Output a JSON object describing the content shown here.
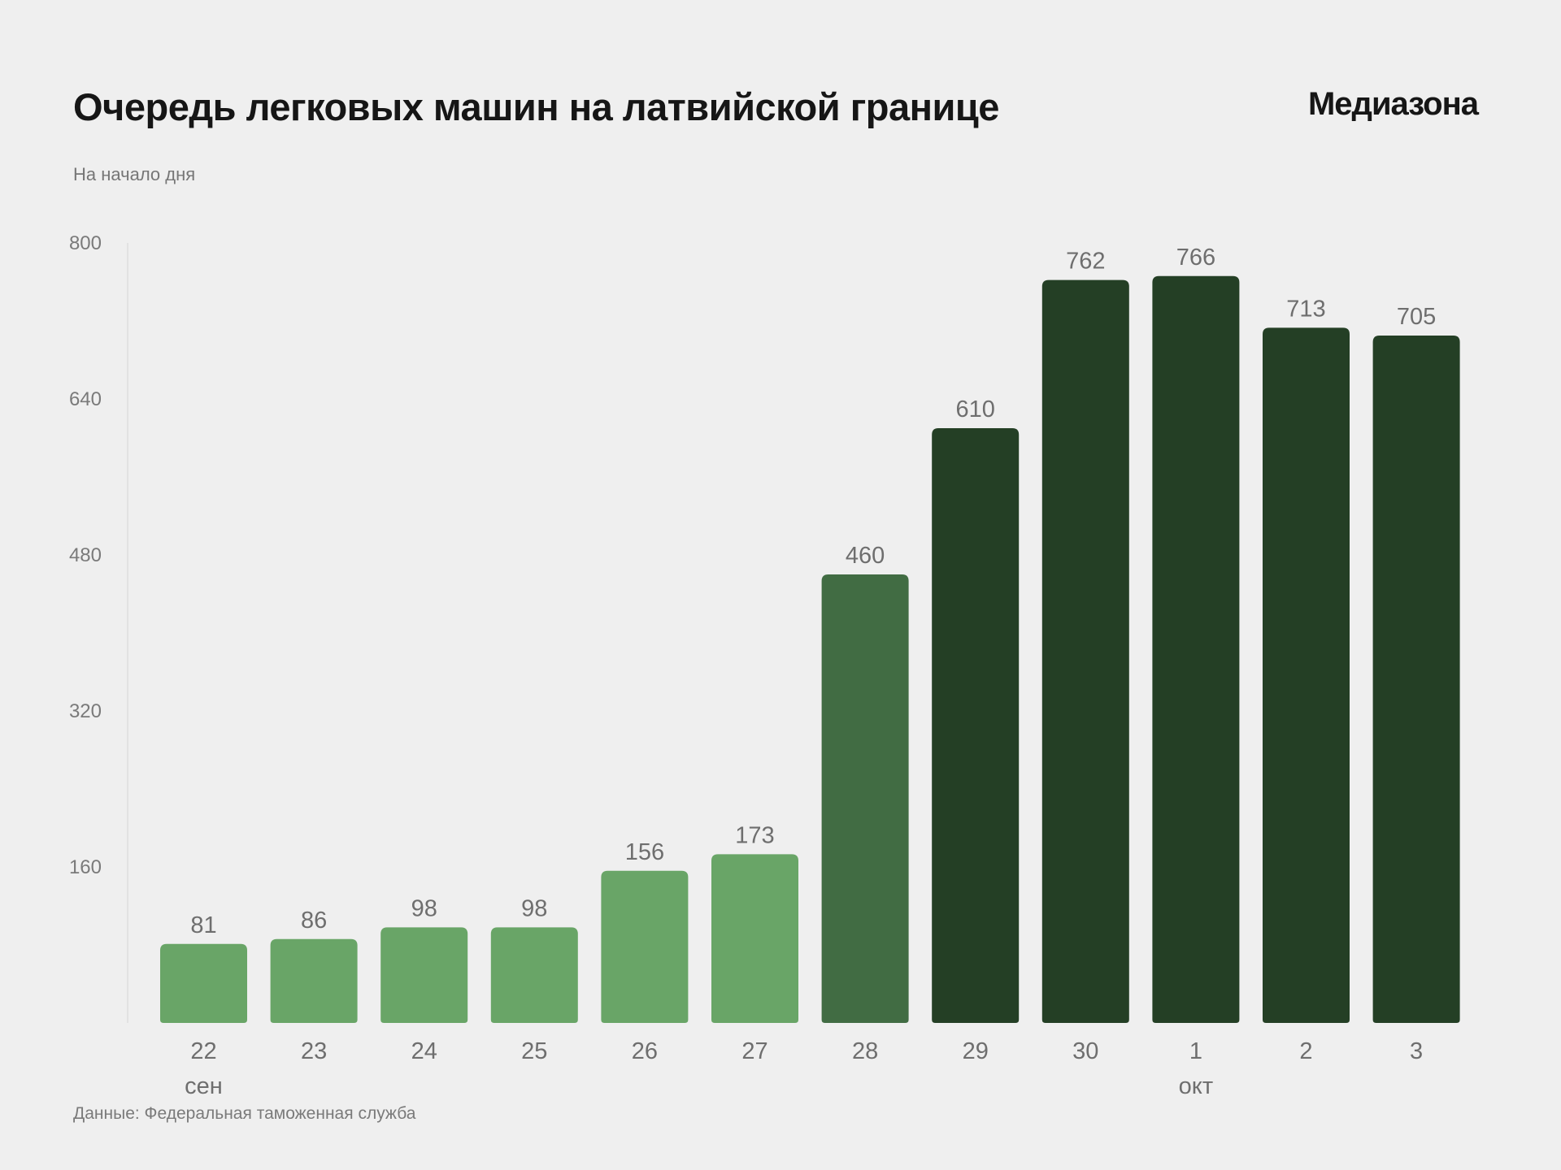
{
  "header": {
    "title": "Очередь легковых машин на латвийской границе",
    "logo": "Медиазона",
    "subtitle": "На начало дня"
  },
  "footer": {
    "source": "Данные: Федеральная таможенная служба"
  },
  "colors": {
    "background": "#efefef",
    "light": "#69a567",
    "medium": "#416c43",
    "dark": "#243f25"
  },
  "chart_data": {
    "type": "bar",
    "title": "Очередь легковых машин на латвийской границе",
    "subtitle": "На начало дня",
    "xlabel": "",
    "ylabel": "",
    "categories": [
      "22",
      "23",
      "24",
      "25",
      "26",
      "27",
      "28",
      "29",
      "30",
      "1",
      "2",
      "3"
    ],
    "month_labels": [
      {
        "index": 0,
        "label": "сен"
      },
      {
        "index": 9,
        "label": "окт"
      }
    ],
    "values": [
      81,
      86,
      98,
      98,
      156,
      173,
      460,
      610,
      762,
      766,
      713,
      705
    ],
    "bar_shades": [
      "light",
      "light",
      "light",
      "light",
      "light",
      "light",
      "medium",
      "dark",
      "dark",
      "dark",
      "dark",
      "dark"
    ],
    "ylim": [
      0,
      800
    ],
    "yticks": [
      160,
      320,
      480,
      640,
      800
    ],
    "grid": false,
    "legend": "none"
  }
}
